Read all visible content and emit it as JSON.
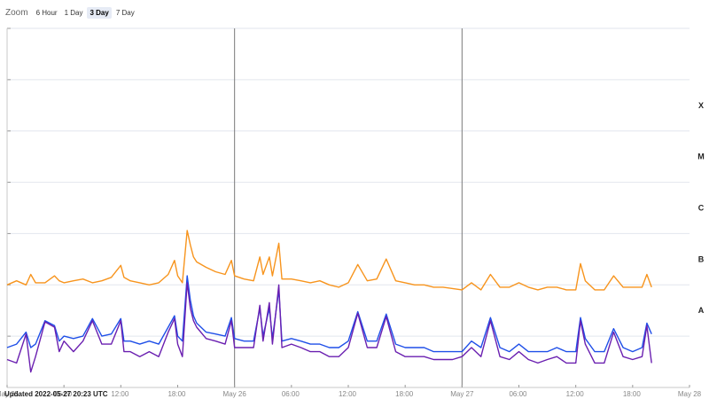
{
  "zoom": {
    "label": "Zoom",
    "buttons": [
      "6 Hour",
      "1 Day",
      "3 Day",
      "7 Day"
    ],
    "active": "3 Day"
  },
  "updated_text": "Updated 2022-05-27 20:23 UTC",
  "colors": {
    "long_channel": "#f7941d",
    "short_channel_blue": "#1f4fe8",
    "short_channel_purple": "#6a1fb0",
    "gridline": "#e2e6ee",
    "day_divider": "#7a7a7a"
  },
  "chart_data": {
    "type": "line",
    "y_scale": "log",
    "ylim": [
      1e-09,
      0.01
    ],
    "xlim": [
      "2022-05-25 00:00",
      "2022-05-28 00:00"
    ],
    "x_ticks": [
      {
        "t": "2022-05-25 00:00",
        "label": "May 25"
      },
      {
        "t": "2022-05-25 06:00",
        "label": "06:00"
      },
      {
        "t": "2022-05-25 12:00",
        "label": "12:00"
      },
      {
        "t": "2022-05-25 18:00",
        "label": "18:00"
      },
      {
        "t": "2022-05-26 00:00",
        "label": "May 26"
      },
      {
        "t": "2022-05-26 06:00",
        "label": "06:00"
      },
      {
        "t": "2022-05-26 12:00",
        "label": "12:00"
      },
      {
        "t": "2022-05-26 18:00",
        "label": "18:00"
      },
      {
        "t": "2022-05-27 00:00",
        "label": "May 27"
      },
      {
        "t": "2022-05-27 06:00",
        "label": "06:00"
      },
      {
        "t": "2022-05-27 12:00",
        "label": "12:00"
      },
      {
        "t": "2022-05-27 18:00",
        "label": "18:00"
      },
      {
        "t": "2022-05-28 00:00",
        "label": "May 28"
      }
    ],
    "class_labels": [
      {
        "label": "X",
        "level": 0.0001
      },
      {
        "label": "M",
        "level": 1e-05
      },
      {
        "label": "C",
        "level": 1e-06
      },
      {
        "label": "B",
        "level": 1e-07
      },
      {
        "label": "A",
        "level": 1e-08
      }
    ],
    "day_dividers": [
      "2022-05-26 00:00",
      "2022-05-27 00:00"
    ],
    "series": [
      {
        "color": "#f7941d",
        "x": [
          "2022-05-25 00:00",
          "2022-05-25 01:00",
          "2022-05-25 02:00",
          "2022-05-25 02:30",
          "2022-05-25 03:00",
          "2022-05-25 04:00",
          "2022-05-25 05:00",
          "2022-05-25 05:30",
          "2022-05-25 06:00",
          "2022-05-25 07:00",
          "2022-05-25 08:00",
          "2022-05-25 09:00",
          "2022-05-25 10:00",
          "2022-05-25 11:00",
          "2022-05-25 12:00",
          "2022-05-25 12:20",
          "2022-05-25 13:00",
          "2022-05-25 14:00",
          "2022-05-25 15:00",
          "2022-05-25 16:00",
          "2022-05-25 17:00",
          "2022-05-25 17:40",
          "2022-05-25 18:00",
          "2022-05-25 18:30",
          "2022-05-25 19:00",
          "2022-05-25 19:20",
          "2022-05-25 19:40",
          "2022-05-25 20:00",
          "2022-05-25 21:00",
          "2022-05-25 22:00",
          "2022-05-25 23:00",
          "2022-05-25 23:40",
          "2022-05-26 00:00",
          "2022-05-26 01:00",
          "2022-05-26 02:00",
          "2022-05-26 02:40",
          "2022-05-26 03:00",
          "2022-05-26 03:40",
          "2022-05-26 04:00",
          "2022-05-26 04:40",
          "2022-05-26 05:00",
          "2022-05-26 06:00",
          "2022-05-26 07:00",
          "2022-05-26 08:00",
          "2022-05-26 09:00",
          "2022-05-26 10:00",
          "2022-05-26 11:00",
          "2022-05-26 12:00",
          "2022-05-26 13:00",
          "2022-05-26 14:00",
          "2022-05-26 15:00",
          "2022-05-26 16:00",
          "2022-05-26 17:00",
          "2022-05-26 18:00",
          "2022-05-26 19:00",
          "2022-05-26 20:00",
          "2022-05-26 21:00",
          "2022-05-26 22:00",
          "2022-05-26 23:00",
          "2022-05-27 00:00",
          "2022-05-27 01:00",
          "2022-05-27 02:00",
          "2022-05-27 03:00",
          "2022-05-27 04:00",
          "2022-05-27 05:00",
          "2022-05-27 06:00",
          "2022-05-27 07:00",
          "2022-05-27 08:00",
          "2022-05-27 09:00",
          "2022-05-27 10:00",
          "2022-05-27 11:00",
          "2022-05-27 12:00",
          "2022-05-27 12:30",
          "2022-05-27 13:00",
          "2022-05-27 14:00",
          "2022-05-27 15:00",
          "2022-05-27 16:00",
          "2022-05-27 17:00",
          "2022-05-27 18:00",
          "2022-05-27 19:00",
          "2022-05-27 19:30",
          "2022-05-27 20:00"
        ],
        "y": [
          1e-07,
          1.2e-07,
          1e-07,
          1.6e-07,
          1.1e-07,
          1.1e-07,
          1.5e-07,
          1.2e-07,
          1.1e-07,
          1.2e-07,
          1.3e-07,
          1.1e-07,
          1.2e-07,
          1.4e-07,
          2.4e-07,
          1.4e-07,
          1.2e-07,
          1.1e-07,
          1e-07,
          1.1e-07,
          1.6e-07,
          3e-07,
          1.5e-07,
          1.1e-07,
          1.15e-06,
          6e-07,
          3.5e-07,
          2.8e-07,
          2.2e-07,
          1.8e-07,
          1.6e-07,
          3e-07,
          1.5e-07,
          1.3e-07,
          1.2e-07,
          3.5e-07,
          1.6e-07,
          3.5e-07,
          1.5e-07,
          6.5e-07,
          1.3e-07,
          1.3e-07,
          1.2e-07,
          1.1e-07,
          1.2e-07,
          1e-07,
          9e-08,
          1.1e-07,
          2.5e-07,
          1.2e-07,
          1.3e-07,
          3.2e-07,
          1.2e-07,
          1.1e-07,
          1e-07,
          1e-07,
          9e-08,
          9e-08,
          8.5e-08,
          8e-08,
          1.1e-07,
          8e-08,
          1.6e-07,
          9e-08,
          9e-08,
          1.1e-07,
          9e-08,
          8e-08,
          9e-08,
          9e-08,
          8e-08,
          8e-08,
          2.6e-07,
          1.2e-07,
          8e-08,
          8e-08,
          1.5e-07,
          9e-08,
          9e-08,
          9e-08,
          1.6e-07,
          9e-08
        ]
      },
      {
        "color": "#1f4fe8",
        "x": [
          "2022-05-25 00:00",
          "2022-05-25 01:00",
          "2022-05-25 02:00",
          "2022-05-25 02:30",
          "2022-05-25 03:00",
          "2022-05-25 04:00",
          "2022-05-25 05:00",
          "2022-05-25 05:30",
          "2022-05-25 06:00",
          "2022-05-25 07:00",
          "2022-05-25 08:00",
          "2022-05-25 09:00",
          "2022-05-25 10:00",
          "2022-05-25 11:00",
          "2022-05-25 12:00",
          "2022-05-25 12:20",
          "2022-05-25 13:00",
          "2022-05-25 14:00",
          "2022-05-25 15:00",
          "2022-05-25 16:00",
          "2022-05-25 17:00",
          "2022-05-25 17:40",
          "2022-05-25 18:00",
          "2022-05-25 18:30",
          "2022-05-25 19:00",
          "2022-05-25 19:20",
          "2022-05-25 19:40",
          "2022-05-25 20:00",
          "2022-05-25 21:00",
          "2022-05-25 22:00",
          "2022-05-25 23:00",
          "2022-05-25 23:40",
          "2022-05-26 00:00",
          "2022-05-26 01:00",
          "2022-05-26 02:00",
          "2022-05-26 02:40",
          "2022-05-26 03:00",
          "2022-05-26 03:40",
          "2022-05-26 04:00",
          "2022-05-26 04:40",
          "2022-05-26 05:00",
          "2022-05-26 06:00",
          "2022-05-26 07:00",
          "2022-05-26 08:00",
          "2022-05-26 09:00",
          "2022-05-26 10:00",
          "2022-05-26 11:00",
          "2022-05-26 12:00",
          "2022-05-26 13:00",
          "2022-05-26 14:00",
          "2022-05-26 15:00",
          "2022-05-26 16:00",
          "2022-05-26 17:00",
          "2022-05-26 18:00",
          "2022-05-26 19:00",
          "2022-05-26 20:00",
          "2022-05-26 21:00",
          "2022-05-26 22:00",
          "2022-05-26 23:00",
          "2022-05-27 00:00",
          "2022-05-27 01:00",
          "2022-05-27 02:00",
          "2022-05-27 03:00",
          "2022-05-27 04:00",
          "2022-05-27 05:00",
          "2022-05-27 06:00",
          "2022-05-27 07:00",
          "2022-05-27 08:00",
          "2022-05-27 09:00",
          "2022-05-27 10:00",
          "2022-05-27 11:00",
          "2022-05-27 12:00",
          "2022-05-27 12:30",
          "2022-05-27 13:00",
          "2022-05-27 14:00",
          "2022-05-27 15:00",
          "2022-05-27 16:00",
          "2022-05-27 17:00",
          "2022-05-27 18:00",
          "2022-05-27 19:00",
          "2022-05-27 19:30",
          "2022-05-27 20:00"
        ],
        "y": [
          6e-09,
          7e-09,
          1.2e-08,
          6e-09,
          7e-09,
          2e-08,
          1.6e-08,
          8e-09,
          1e-08,
          9e-09,
          1e-08,
          2.2e-08,
          1e-08,
          1.1e-08,
          2.2e-08,
          8e-09,
          8e-09,
          7e-09,
          8e-09,
          7e-09,
          1.5e-08,
          2.5e-08,
          1e-08,
          8e-09,
          1.5e-07,
          5e-08,
          2.5e-08,
          1.8e-08,
          1.2e-08,
          1.1e-08,
          1e-08,
          2.3e-08,
          9e-09,
          8e-09,
          8e-09,
          3.5e-08,
          1e-08,
          3.5e-08,
          9e-09,
          8e-08,
          8e-09,
          9e-09,
          8e-09,
          7e-09,
          7e-09,
          6e-09,
          6e-09,
          8e-09,
          3e-08,
          8e-09,
          8e-09,
          2.7e-08,
          7e-09,
          6e-09,
          6e-09,
          6e-09,
          5e-09,
          5e-09,
          5e-09,
          5e-09,
          8e-09,
          6e-09,
          2.3e-08,
          6e-09,
          5e-09,
          7e-09,
          5e-09,
          5e-09,
          5e-09,
          6e-09,
          5e-09,
          5e-09,
          2.3e-08,
          9e-09,
          5e-09,
          5e-09,
          1.4e-08,
          6e-09,
          5e-09,
          6e-09,
          1.8e-08,
          1.1e-08
        ]
      },
      {
        "color": "#6a1fb0",
        "x": [
          "2022-05-25 00:00",
          "2022-05-25 01:00",
          "2022-05-25 02:00",
          "2022-05-25 02:30",
          "2022-05-25 03:00",
          "2022-05-25 04:00",
          "2022-05-25 05:00",
          "2022-05-25 05:30",
          "2022-05-25 06:00",
          "2022-05-25 07:00",
          "2022-05-25 08:00",
          "2022-05-25 09:00",
          "2022-05-25 10:00",
          "2022-05-25 11:00",
          "2022-05-25 12:00",
          "2022-05-25 12:20",
          "2022-05-25 13:00",
          "2022-05-25 14:00",
          "2022-05-25 15:00",
          "2022-05-25 16:00",
          "2022-05-25 17:00",
          "2022-05-25 17:40",
          "2022-05-25 18:00",
          "2022-05-25 18:30",
          "2022-05-25 19:00",
          "2022-05-25 19:20",
          "2022-05-25 19:40",
          "2022-05-25 20:00",
          "2022-05-25 21:00",
          "2022-05-25 22:00",
          "2022-05-25 23:00",
          "2022-05-25 23:40",
          "2022-05-26 00:00",
          "2022-05-26 01:00",
          "2022-05-26 02:00",
          "2022-05-26 02:40",
          "2022-05-26 03:00",
          "2022-05-26 03:40",
          "2022-05-26 04:00",
          "2022-05-26 04:40",
          "2022-05-26 05:00",
          "2022-05-26 06:00",
          "2022-05-26 07:00",
          "2022-05-26 08:00",
          "2022-05-26 09:00",
          "2022-05-26 10:00",
          "2022-05-26 11:00",
          "2022-05-26 12:00",
          "2022-05-26 13:00",
          "2022-05-26 14:00",
          "2022-05-26 15:00",
          "2022-05-26 16:00",
          "2022-05-26 17:00",
          "2022-05-26 18:00",
          "2022-05-26 19:00",
          "2022-05-26 20:00",
          "2022-05-26 21:00",
          "2022-05-26 22:00",
          "2022-05-26 23:00",
          "2022-05-27 00:00",
          "2022-05-27 01:00",
          "2022-05-27 02:00",
          "2022-05-27 03:00",
          "2022-05-27 04:00",
          "2022-05-27 05:00",
          "2022-05-27 06:00",
          "2022-05-27 07:00",
          "2022-05-27 08:00",
          "2022-05-27 09:00",
          "2022-05-27 10:00",
          "2022-05-27 11:00",
          "2022-05-27 12:00",
          "2022-05-27 12:30",
          "2022-05-27 13:00",
          "2022-05-27 14:00",
          "2022-05-27 15:00",
          "2022-05-27 16:00",
          "2022-05-27 17:00",
          "2022-05-27 18:00",
          "2022-05-27 19:00",
          "2022-05-27 19:30",
          "2022-05-27 20:00"
        ],
        "y": [
          3.5e-09,
          3e-09,
          1.1e-08,
          2e-09,
          4e-09,
          1.9e-08,
          1.5e-08,
          5e-09,
          8e-09,
          5e-09,
          8e-09,
          2e-08,
          7e-09,
          7e-09,
          2e-08,
          5e-09,
          5e-09,
          4e-09,
          5e-09,
          4e-09,
          1.2e-08,
          2.2e-08,
          7e-09,
          4e-09,
          1.1e-07,
          3.5e-08,
          2e-08,
          1.5e-08,
          9e-09,
          8e-09,
          7e-09,
          2e-08,
          6e-09,
          6e-09,
          6e-09,
          4e-08,
          8e-09,
          4.5e-08,
          7e-09,
          1e-07,
          6e-09,
          7e-09,
          6e-09,
          5e-09,
          5e-09,
          4e-09,
          4e-09,
          6e-09,
          2.8e-08,
          6e-09,
          6e-09,
          2.4e-08,
          5e-09,
          4e-09,
          4e-09,
          4e-09,
          3.5e-09,
          3.5e-09,
          3.5e-09,
          4e-09,
          6e-09,
          4e-09,
          2e-08,
          4e-09,
          3.5e-09,
          5e-09,
          3.5e-09,
          3e-09,
          3.5e-09,
          4e-09,
          3e-09,
          3e-09,
          2e-08,
          7e-09,
          3e-09,
          3e-09,
          1.2e-08,
          4e-09,
          3.5e-09,
          4e-09,
          1.6e-08,
          3e-09
        ]
      }
    ]
  }
}
